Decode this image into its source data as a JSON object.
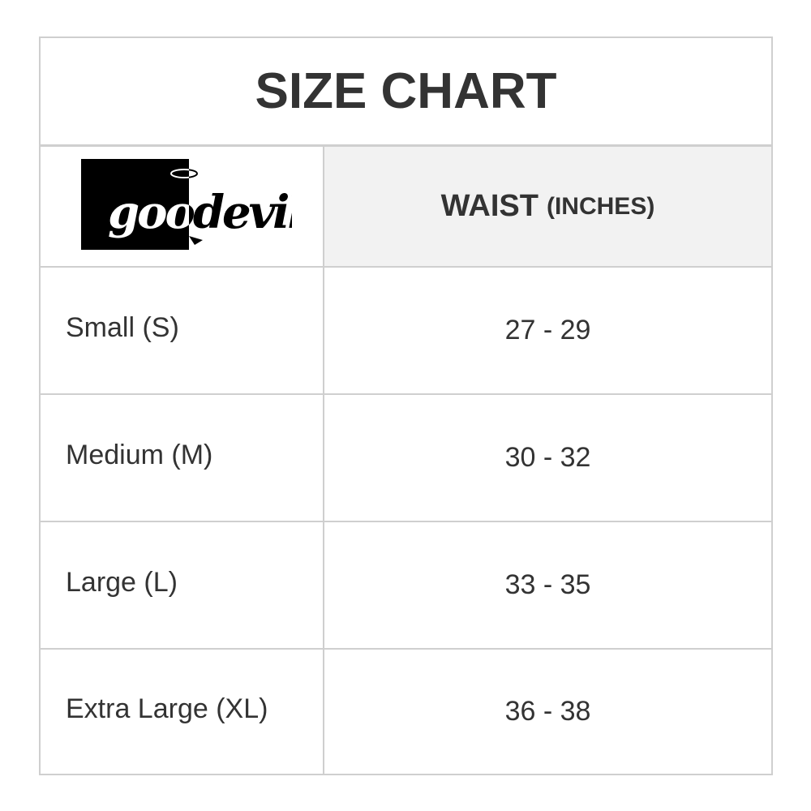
{
  "title": "SIZE CHART",
  "logo": {
    "text": "goodevil"
  },
  "header": {
    "measure": "WAIST",
    "unit": "(INCHES)"
  },
  "rows": [
    {
      "size": "Small (S)",
      "waist": "27 - 29"
    },
    {
      "size": "Medium (M)",
      "waist": "30 - 32"
    },
    {
      "size": "Large (L)",
      "waist": "33 - 35"
    },
    {
      "size": "Extra Large (XL)",
      "waist": "36 - 38"
    }
  ]
}
